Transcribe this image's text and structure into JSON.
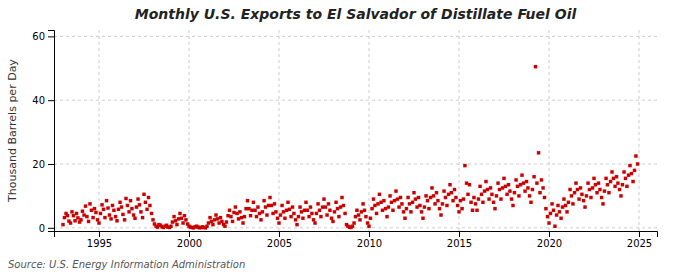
{
  "chart_data": {
    "type": "scatter",
    "title": "Monthly U.S. Exports to El Salvador of Distillate Fuel Oil",
    "ylabel": "Thousand Barrels per Day",
    "annotation": "Source: U.S. Energy Information Administration",
    "color": "#cc0000",
    "marker": "square",
    "grid": true,
    "xlim": [
      1992.5,
      2026.0
    ],
    "ylim": [
      -1,
      62
    ],
    "xticks": [
      1995,
      2000,
      2005,
      2010,
      2015,
      2020,
      2025
    ],
    "yticks": [
      0,
      20,
      40,
      60
    ],
    "x": [
      1993.0,
      1993.08,
      1993.17,
      1993.25,
      1993.33,
      1993.42,
      1993.5,
      1993.58,
      1993.67,
      1993.75,
      1993.83,
      1993.92,
      1994.0,
      1994.08,
      1994.17,
      1994.25,
      1994.33,
      1994.42,
      1994.5,
      1994.58,
      1994.67,
      1994.75,
      1994.83,
      1994.92,
      1995.0,
      1995.08,
      1995.17,
      1995.25,
      1995.33,
      1995.42,
      1995.5,
      1995.58,
      1995.67,
      1995.75,
      1995.83,
      1995.92,
      1996.0,
      1996.08,
      1996.17,
      1996.25,
      1996.33,
      1996.42,
      1996.5,
      1996.58,
      1996.67,
      1996.75,
      1996.83,
      1996.92,
      1997.0,
      1997.08,
      1997.17,
      1997.25,
      1997.33,
      1997.42,
      1997.5,
      1997.58,
      1997.67,
      1997.75,
      1997.83,
      1997.92,
      1998.0,
      1998.08,
      1998.17,
      1998.25,
      1998.33,
      1998.42,
      1998.5,
      1998.58,
      1998.67,
      1998.75,
      1998.83,
      1998.92,
      1999.0,
      1999.08,
      1999.17,
      1999.25,
      1999.33,
      1999.42,
      1999.5,
      1999.58,
      1999.67,
      1999.75,
      1999.83,
      1999.92,
      2000.0,
      2000.08,
      2000.17,
      2000.25,
      2000.33,
      2000.42,
      2000.5,
      2000.58,
      2000.67,
      2000.75,
      2000.83,
      2000.92,
      2001.0,
      2001.08,
      2001.17,
      2001.25,
      2001.33,
      2001.42,
      2001.5,
      2001.58,
      2001.67,
      2001.75,
      2001.83,
      2001.92,
      2002.0,
      2002.08,
      2002.17,
      2002.25,
      2002.33,
      2002.42,
      2002.5,
      2002.58,
      2002.67,
      2002.75,
      2002.83,
      2002.92,
      2003.0,
      2003.08,
      2003.17,
      2003.25,
      2003.33,
      2003.42,
      2003.5,
      2003.58,
      2003.67,
      2003.75,
      2003.83,
      2003.92,
      2004.0,
      2004.08,
      2004.17,
      2004.25,
      2004.33,
      2004.42,
      2004.5,
      2004.58,
      2004.67,
      2004.75,
      2004.83,
      2004.92,
      2005.0,
      2005.08,
      2005.17,
      2005.25,
      2005.33,
      2005.42,
      2005.5,
      2005.58,
      2005.67,
      2005.75,
      2005.83,
      2005.92,
      2006.0,
      2006.08,
      2006.17,
      2006.25,
      2006.33,
      2006.42,
      2006.5,
      2006.58,
      2006.67,
      2006.75,
      2006.83,
      2006.92,
      2007.0,
      2007.08,
      2007.17,
      2007.25,
      2007.33,
      2007.42,
      2007.5,
      2007.58,
      2007.67,
      2007.75,
      2007.83,
      2007.92,
      2008.0,
      2008.08,
      2008.17,
      2008.25,
      2008.33,
      2008.42,
      2008.5,
      2008.58,
      2008.67,
      2008.75,
      2008.83,
      2008.92,
      2009.0,
      2009.08,
      2009.17,
      2009.25,
      2009.33,
      2009.42,
      2009.5,
      2009.58,
      2009.67,
      2009.75,
      2009.83,
      2009.92,
      2010.0,
      2010.08,
      2010.17,
      2010.25,
      2010.33,
      2010.42,
      2010.5,
      2010.58,
      2010.67,
      2010.75,
      2010.83,
      2010.92,
      2011.0,
      2011.08,
      2011.17,
      2011.25,
      2011.33,
      2011.42,
      2011.5,
      2011.58,
      2011.67,
      2011.75,
      2011.83,
      2011.92,
      2012.0,
      2012.08,
      2012.17,
      2012.25,
      2012.33,
      2012.42,
      2012.5,
      2012.58,
      2012.67,
      2012.75,
      2012.83,
      2012.92,
      2013.0,
      2013.08,
      2013.17,
      2013.25,
      2013.33,
      2013.42,
      2013.5,
      2013.58,
      2013.67,
      2013.75,
      2013.83,
      2013.92,
      2014.0,
      2014.08,
      2014.17,
      2014.25,
      2014.33,
      2014.42,
      2014.5,
      2014.58,
      2014.67,
      2014.75,
      2014.83,
      2014.92,
      2015.0,
      2015.08,
      2015.17,
      2015.25,
      2015.33,
      2015.42,
      2015.5,
      2015.58,
      2015.67,
      2015.75,
      2015.83,
      2015.92,
      2016.0,
      2016.08,
      2016.17,
      2016.25,
      2016.33,
      2016.42,
      2016.5,
      2016.58,
      2016.67,
      2016.75,
      2016.83,
      2016.92,
      2017.0,
      2017.08,
      2017.17,
      2017.25,
      2017.33,
      2017.42,
      2017.5,
      2017.58,
      2017.67,
      2017.75,
      2017.83,
      2017.92,
      2018.0,
      2018.08,
      2018.17,
      2018.25,
      2018.33,
      2018.42,
      2018.5,
      2018.58,
      2018.67,
      2018.75,
      2018.83,
      2018.92,
      2019.0,
      2019.08,
      2019.17,
      2019.25,
      2019.33,
      2019.42,
      2019.5,
      2019.58,
      2019.67,
      2019.75,
      2019.83,
      2019.92,
      2020.0,
      2020.08,
      2020.17,
      2020.25,
      2020.33,
      2020.42,
      2020.5,
      2020.58,
      2020.67,
      2020.75,
      2020.83,
      2020.92,
      2021.0,
      2021.08,
      2021.17,
      2021.25,
      2021.33,
      2021.42,
      2021.5,
      2021.58,
      2021.67,
      2021.75,
      2021.83,
      2021.92,
      2022.0,
      2022.08,
      2022.17,
      2022.25,
      2022.33,
      2022.42,
      2022.5,
      2022.58,
      2022.67,
      2022.75,
      2022.83,
      2022.92,
      2023.0,
      2023.08,
      2023.17,
      2023.25,
      2023.33,
      2023.42,
      2023.5,
      2023.58,
      2023.67,
      2023.75,
      2023.83,
      2023.92,
      2024.0,
      2024.08,
      2024.17,
      2024.25,
      2024.33,
      2024.42,
      2024.5,
      2024.58,
      2024.67,
      2024.75,
      2024.83,
      2024.92
    ],
    "values": [
      1.0,
      3.2,
      4.5,
      3.8,
      2.1,
      1.5,
      5.0,
      3.8,
      2.2,
      4.5,
      3.1,
      1.8,
      2.5,
      5.2,
      4.0,
      6.8,
      3.5,
      2.0,
      7.5,
      5.5,
      3.2,
      6.0,
      4.8,
      2.5,
      1.5,
      4.5,
      7.2,
      5.8,
      3.2,
      8.5,
      6.2,
      4.0,
      2.8,
      7.0,
      5.5,
      3.5,
      2.2,
      5.8,
      8.0,
      6.5,
      4.2,
      2.5,
      9.2,
      7.0,
      5.0,
      8.5,
      6.0,
      4.0,
      3.0,
      6.5,
      9.0,
      7.2,
      5.0,
      3.2,
      10.5,
      8.0,
      5.8,
      9.5,
      7.0,
      4.5,
      2.5,
      1.2,
      0.5,
      0.2,
      1.0,
      0.8,
      0.3,
      0.1,
      0.5,
      0.8,
      0.2,
      0.1,
      0.5,
      1.8,
      3.5,
      2.2,
      1.0,
      2.8,
      4.5,
      3.0,
      1.5,
      3.8,
      2.5,
      1.2,
      0.5,
      0.2,
      0.1,
      0.0,
      0.3,
      0.5,
      0.2,
      0.0,
      0.1,
      0.3,
      0.1,
      0.0,
      0.5,
      1.5,
      3.2,
      2.0,
      1.0,
      2.5,
      4.0,
      2.8,
      1.5,
      3.2,
      2.0,
      1.0,
      0.5,
      1.8,
      3.8,
      5.5,
      3.5,
      2.0,
      4.8,
      6.5,
      4.5,
      2.8,
      5.0,
      3.2,
      1.5,
      3.5,
      6.0,
      8.5,
      6.0,
      3.8,
      5.5,
      8.0,
      5.5,
      3.5,
      6.5,
      4.5,
      2.5,
      5.0,
      8.5,
      6.5,
      4.0,
      7.0,
      9.5,
      7.0,
      4.5,
      7.5,
      5.0,
      3.0,
      1.5,
      4.0,
      7.0,
      5.0,
      3.0,
      5.5,
      8.0,
      5.8,
      3.5,
      6.5,
      4.5,
      2.5,
      1.0,
      3.5,
      6.5,
      5.0,
      3.0,
      5.5,
      8.0,
      5.5,
      3.5,
      6.5,
      4.5,
      2.5,
      1.5,
      4.5,
      7.5,
      5.5,
      3.5,
      6.5,
      9.0,
      6.5,
      4.0,
      7.5,
      5.5,
      3.0,
      2.0,
      5.0,
      8.0,
      6.0,
      3.5,
      6.5,
      9.5,
      7.0,
      4.5,
      1.0,
      0.5,
      0.2,
      0.1,
      0.5,
      1.5,
      3.5,
      5.5,
      4.0,
      2.5,
      5.0,
      7.5,
      5.5,
      3.5,
      1.5,
      0.5,
      3.0,
      6.0,
      9.0,
      7.0,
      4.5,
      7.5,
      10.5,
      8.0,
      5.5,
      8.5,
      6.0,
      3.5,
      6.5,
      10.0,
      8.0,
      5.5,
      8.5,
      11.5,
      9.0,
      6.5,
      9.5,
      7.5,
      5.0,
      3.0,
      6.0,
      9.5,
      7.5,
      5.0,
      8.0,
      11.0,
      9.0,
      6.5,
      9.5,
      7.0,
      5.0,
      3.0,
      6.5,
      10.0,
      8.5,
      6.0,
      9.5,
      12.5,
      10.0,
      7.5,
      11.0,
      8.5,
      6.0,
      4.0,
      7.5,
      11.5,
      9.5,
      7.0,
      10.5,
      13.5,
      11.0,
      8.5,
      12.0,
      9.5,
      7.0,
      5.0,
      8.5,
      6.0,
      9.0,
      19.5,
      14.0,
      10.5,
      13.5,
      8.0,
      5.5,
      9.5,
      7.5,
      5.5,
      9.0,
      13.0,
      10.5,
      8.0,
      11.5,
      14.5,
      12.0,
      9.0,
      12.5,
      10.5,
      8.0,
      6.0,
      10.0,
      14.0,
      12.0,
      9.0,
      12.5,
      15.5,
      13.0,
      10.5,
      13.5,
      11.5,
      9.0,
      7.0,
      11.0,
      15.0,
      13.0,
      10.0,
      13.5,
      16.5,
      14.0,
      11.5,
      14.5,
      12.5,
      10.0,
      8.0,
      12.0,
      16.0,
      50.5,
      14.0,
      23.5,
      11.0,
      15.0,
      12.5,
      9.5,
      6.0,
      3.5,
      1.5,
      4.5,
      7.5,
      5.5,
      0.5,
      4.0,
      7.0,
      5.0,
      3.0,
      6.5,
      9.0,
      7.0,
      5.0,
      8.0,
      12.0,
      10.0,
      7.5,
      11.0,
      14.0,
      12.0,
      9.0,
      12.5,
      10.5,
      8.5,
      6.5,
      10.0,
      14.0,
      12.0,
      9.5,
      12.5,
      15.5,
      13.5,
      11.0,
      14.0,
      12.0,
      9.5,
      7.5,
      11.5,
      15.5,
      13.5,
      11.0,
      14.5,
      17.5,
      15.5,
      13.0,
      16.0,
      14.0,
      12.0,
      10.0,
      13.5,
      17.5,
      15.5,
      13.0,
      16.5,
      19.5,
      17.0,
      14.5,
      18.0,
      22.5,
      20.0
    ]
  }
}
